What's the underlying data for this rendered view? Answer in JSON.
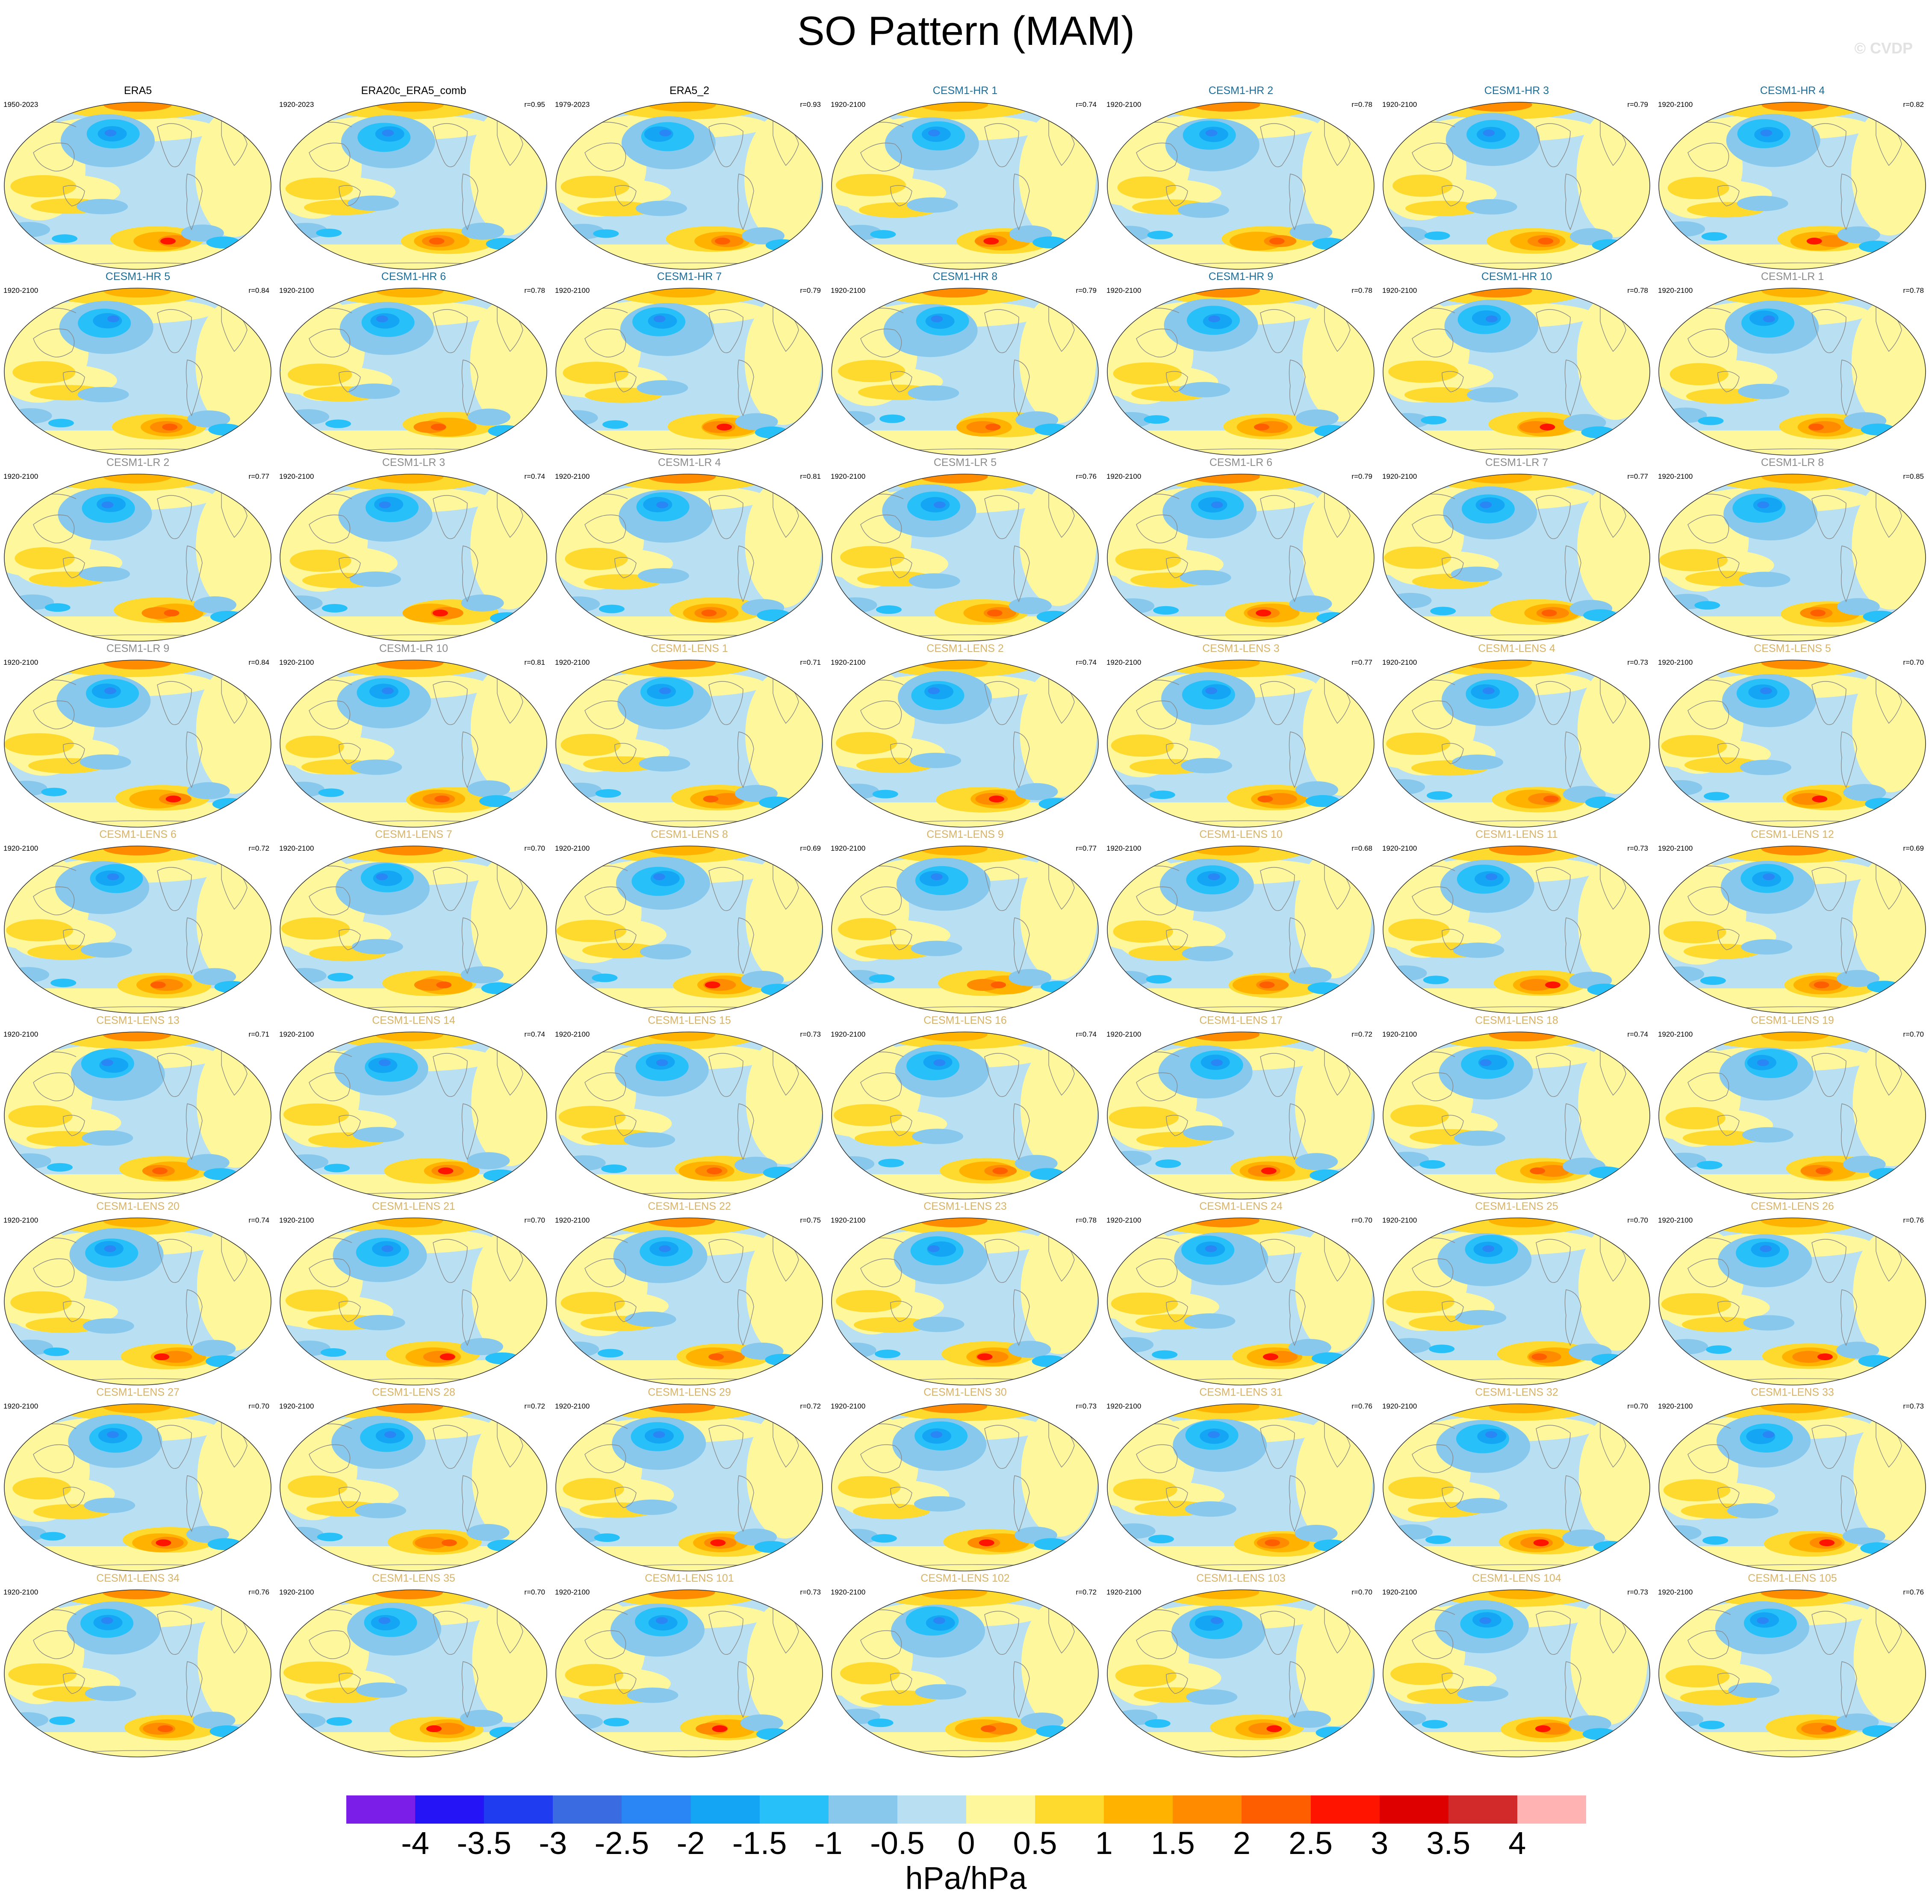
{
  "figure": {
    "title": "SO Pattern (MAM)",
    "watermark": "© CVDP",
    "units": "hPa/hPa",
    "title_colors": {
      "obs": "#000000",
      "hr": "#1c6e9a",
      "lr": "#8c8c8c",
      "lens": "#d9b365"
    }
  },
  "colorbar": {
    "colors": [
      "#7b1fe8",
      "#2414f6",
      "#1f3cf0",
      "#3a6be0",
      "#2b86f5",
      "#14a6f5",
      "#27c0f8",
      "#87c8ec",
      "#b8e0f2",
      "#fff79c",
      "#ffda2e",
      "#ffb300",
      "#ff8c00",
      "#ff5e00",
      "#ff1400",
      "#de0000",
      "#d22a2a",
      "#ffb3b3"
    ],
    "ticks": [
      "-4",
      "-3.5",
      "-3",
      "-2.5",
      "-2",
      "-1.5",
      "-1",
      "-0.5",
      "0",
      "0.5",
      "1",
      "1.5",
      "2",
      "2.5",
      "3",
      "3.5",
      "4"
    ]
  },
  "panels": [
    {
      "title": "ERA5",
      "group": "obs",
      "period": "1950-2023",
      "r": ""
    },
    {
      "title": "ERA20c_ERA5_comb",
      "group": "obs",
      "period": "1920-2023",
      "r": "r=0.95"
    },
    {
      "title": "ERA5_2",
      "group": "obs",
      "period": "1979-2023",
      "r": "r=0.93"
    },
    {
      "title": "CESM1-HR 1",
      "group": "hr",
      "period": "1920-2100",
      "r": "r=0.74"
    },
    {
      "title": "CESM1-HR 2",
      "group": "hr",
      "period": "1920-2100",
      "r": "r=0.78"
    },
    {
      "title": "CESM1-HR 3",
      "group": "hr",
      "period": "1920-2100",
      "r": "r=0.79"
    },
    {
      "title": "CESM1-HR 4",
      "group": "hr",
      "period": "1920-2100",
      "r": "r=0.82"
    },
    {
      "title": "CESM1-HR 5",
      "group": "hr",
      "period": "1920-2100",
      "r": "r=0.84"
    },
    {
      "title": "CESM1-HR 6",
      "group": "hr",
      "period": "1920-2100",
      "r": "r=0.78"
    },
    {
      "title": "CESM1-HR 7",
      "group": "hr",
      "period": "1920-2100",
      "r": "r=0.79"
    },
    {
      "title": "CESM1-HR 8",
      "group": "hr",
      "period": "1920-2100",
      "r": "r=0.79"
    },
    {
      "title": "CESM1-HR 9",
      "group": "hr",
      "period": "1920-2100",
      "r": "r=0.78"
    },
    {
      "title": "CESM1-HR 10",
      "group": "hr",
      "period": "1920-2100",
      "r": "r=0.78"
    },
    {
      "title": "CESM1-LR 1",
      "group": "lr",
      "period": "1920-2100",
      "r": "r=0.78"
    },
    {
      "title": "CESM1-LR 2",
      "group": "lr",
      "period": "1920-2100",
      "r": "r=0.77"
    },
    {
      "title": "CESM1-LR 3",
      "group": "lr",
      "period": "1920-2100",
      "r": "r=0.74"
    },
    {
      "title": "CESM1-LR 4",
      "group": "lr",
      "period": "1920-2100",
      "r": "r=0.81"
    },
    {
      "title": "CESM1-LR 5",
      "group": "lr",
      "period": "1920-2100",
      "r": "r=0.76"
    },
    {
      "title": "CESM1-LR 6",
      "group": "lr",
      "period": "1920-2100",
      "r": "r=0.79"
    },
    {
      "title": "CESM1-LR 7",
      "group": "lr",
      "period": "1920-2100",
      "r": "r=0.77"
    },
    {
      "title": "CESM1-LR 8",
      "group": "lr",
      "period": "1920-2100",
      "r": "r=0.85"
    },
    {
      "title": "CESM1-LR 9",
      "group": "lr",
      "period": "1920-2100",
      "r": "r=0.84"
    },
    {
      "title": "CESM1-LR 10",
      "group": "lr",
      "period": "1920-2100",
      "r": "r=0.81"
    },
    {
      "title": "CESM1-LENS 1",
      "group": "lens",
      "period": "1920-2100",
      "r": "r=0.71"
    },
    {
      "title": "CESM1-LENS 2",
      "group": "lens",
      "period": "1920-2100",
      "r": "r=0.74"
    },
    {
      "title": "CESM1-LENS 3",
      "group": "lens",
      "period": "1920-2100",
      "r": "r=0.77"
    },
    {
      "title": "CESM1-LENS 4",
      "group": "lens",
      "period": "1920-2100",
      "r": "r=0.73"
    },
    {
      "title": "CESM1-LENS 5",
      "group": "lens",
      "period": "1920-2100",
      "r": "r=0.70"
    },
    {
      "title": "CESM1-LENS 6",
      "group": "lens",
      "period": "1920-2100",
      "r": "r=0.72"
    },
    {
      "title": "CESM1-LENS 7",
      "group": "lens",
      "period": "1920-2100",
      "r": "r=0.70"
    },
    {
      "title": "CESM1-LENS 8",
      "group": "lens",
      "period": "1920-2100",
      "r": "r=0.69"
    },
    {
      "title": "CESM1-LENS 9",
      "group": "lens",
      "period": "1920-2100",
      "r": "r=0.77"
    },
    {
      "title": "CESM1-LENS 10",
      "group": "lens",
      "period": "1920-2100",
      "r": "r=0.68"
    },
    {
      "title": "CESM1-LENS 11",
      "group": "lens",
      "period": "1920-2100",
      "r": "r=0.73"
    },
    {
      "title": "CESM1-LENS 12",
      "group": "lens",
      "period": "1920-2100",
      "r": "r=0.69"
    },
    {
      "title": "CESM1-LENS 13",
      "group": "lens",
      "period": "1920-2100",
      "r": "r=0.71"
    },
    {
      "title": "CESM1-LENS 14",
      "group": "lens",
      "period": "1920-2100",
      "r": "r=0.74"
    },
    {
      "title": "CESM1-LENS 15",
      "group": "lens",
      "period": "1920-2100",
      "r": "r=0.73"
    },
    {
      "title": "CESM1-LENS 16",
      "group": "lens",
      "period": "1920-2100",
      "r": "r=0.74"
    },
    {
      "title": "CESM1-LENS 17",
      "group": "lens",
      "period": "1920-2100",
      "r": "r=0.72"
    },
    {
      "title": "CESM1-LENS 18",
      "group": "lens",
      "period": "1920-2100",
      "r": "r=0.74"
    },
    {
      "title": "CESM1-LENS 19",
      "group": "lens",
      "period": "1920-2100",
      "r": "r=0.70"
    },
    {
      "title": "CESM1-LENS 20",
      "group": "lens",
      "period": "1920-2100",
      "r": "r=0.74"
    },
    {
      "title": "CESM1-LENS 21",
      "group": "lens",
      "period": "1920-2100",
      "r": "r=0.70"
    },
    {
      "title": "CESM1-LENS 22",
      "group": "lens",
      "period": "1920-2100",
      "r": "r=0.75"
    },
    {
      "title": "CESM1-LENS 23",
      "group": "lens",
      "period": "1920-2100",
      "r": "r=0.78"
    },
    {
      "title": "CESM1-LENS 24",
      "group": "lens",
      "period": "1920-2100",
      "r": "r=0.70"
    },
    {
      "title": "CESM1-LENS 25",
      "group": "lens",
      "period": "1920-2100",
      "r": "r=0.70"
    },
    {
      "title": "CESM1-LENS 26",
      "group": "lens",
      "period": "1920-2100",
      "r": "r=0.76"
    },
    {
      "title": "CESM1-LENS 27",
      "group": "lens",
      "period": "1920-2100",
      "r": "r=0.70"
    },
    {
      "title": "CESM1-LENS 28",
      "group": "lens",
      "period": "1920-2100",
      "r": "r=0.72"
    },
    {
      "title": "CESM1-LENS 29",
      "group": "lens",
      "period": "1920-2100",
      "r": "r=0.72"
    },
    {
      "title": "CESM1-LENS 30",
      "group": "lens",
      "period": "1920-2100",
      "r": "r=0.73"
    },
    {
      "title": "CESM1-LENS 31",
      "group": "lens",
      "period": "1920-2100",
      "r": "r=0.76"
    },
    {
      "title": "CESM1-LENS 32",
      "group": "lens",
      "period": "1920-2100",
      "r": "r=0.70"
    },
    {
      "title": "CESM1-LENS 33",
      "group": "lens",
      "period": "1920-2100",
      "r": "r=0.73"
    },
    {
      "title": "CESM1-LENS 34",
      "group": "lens",
      "period": "1920-2100",
      "r": "r=0.76"
    },
    {
      "title": "CESM1-LENS 35",
      "group": "lens",
      "period": "1920-2100",
      "r": "r=0.70"
    },
    {
      "title": "CESM1-LENS 101",
      "group": "lens",
      "period": "1920-2100",
      "r": "r=0.73"
    },
    {
      "title": "CESM1-LENS 102",
      "group": "lens",
      "period": "1920-2100",
      "r": "r=0.72"
    },
    {
      "title": "CESM1-LENS 103",
      "group": "lens",
      "period": "1920-2100",
      "r": "r=0.70"
    },
    {
      "title": "CESM1-LENS 104",
      "group": "lens",
      "period": "1920-2100",
      "r": "r=0.73"
    },
    {
      "title": "CESM1-LENS 105",
      "group": "lens",
      "period": "1920-2100",
      "r": "r=0.76"
    }
  ]
}
